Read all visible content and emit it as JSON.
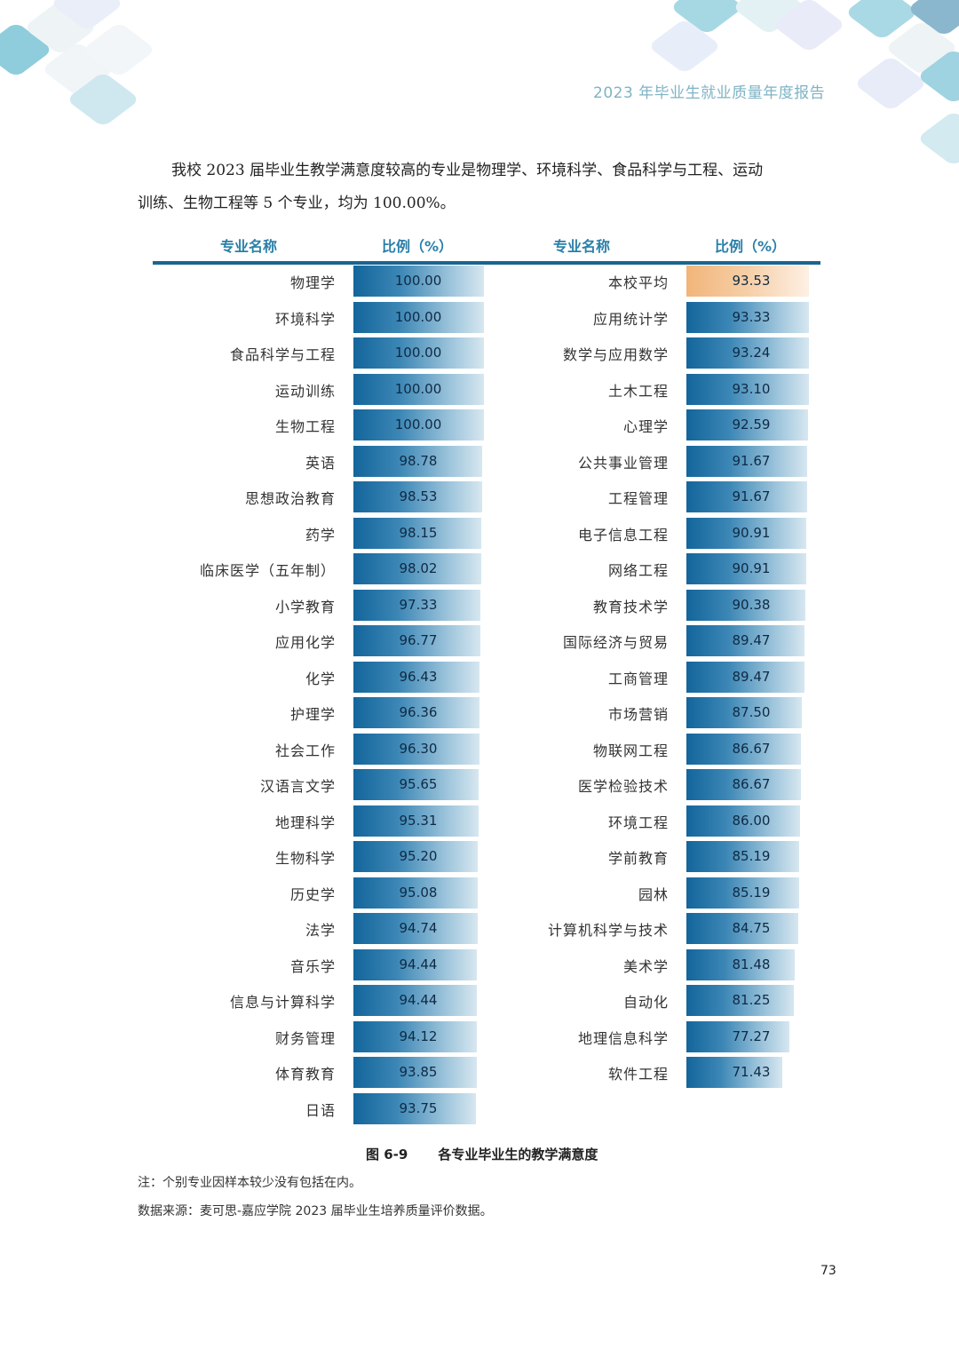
{
  "running_head": "2023 年毕业生就业质量年度报告",
  "paragraph": {
    "line1": "我校 2023 届毕业生教学满意度较高的专业是物理学、环境科学、食品科学与工程、运动",
    "line2": "训练、生物工程等 5 个专业，均为 100.00%。"
  },
  "table_headers": {
    "left_name": "专业名称",
    "left_pct": "比例（%）",
    "right_name": "专业名称",
    "right_pct": "比例（%）"
  },
  "chart_data": {
    "type": "bar",
    "orientation": "horizontal",
    "title": "图 6-9 各专业毕业生的教学满意度",
    "xlabel": "比例（%）",
    "ylabel": "专业名称",
    "highlight": {
      "category": "本校平均",
      "color": "#f1b57a"
    },
    "bar_color": "#13659b",
    "categories": [
      "物理学",
      "环境科学",
      "食品科学与工程",
      "运动训练",
      "生物工程",
      "英语",
      "思想政治教育",
      "药学",
      "临床医学（五年制）",
      "小学教育",
      "应用化学",
      "化学",
      "护理学",
      "社会工作",
      "汉语言文学",
      "地理科学",
      "生物科学",
      "历史学",
      "法学",
      "音乐学",
      "信息与计算科学",
      "财务管理",
      "体育教育",
      "日语",
      "本校平均",
      "应用统计学",
      "数学与应用数学",
      "土木工程",
      "心理学",
      "公共事业管理",
      "工程管理",
      "电子信息工程",
      "网络工程",
      "教育技术学",
      "国际经济与贸易",
      "工商管理",
      "市场营销",
      "物联网工程",
      "医学检验技术",
      "环境工程",
      "学前教育",
      "园林",
      "计算机科学与技术",
      "美术学",
      "自动化",
      "地理信息科学",
      "软件工程"
    ],
    "values": [
      100.0,
      100.0,
      100.0,
      100.0,
      100.0,
      98.78,
      98.53,
      98.15,
      98.02,
      97.33,
      96.77,
      96.43,
      96.36,
      96.3,
      95.65,
      95.31,
      95.2,
      95.08,
      94.74,
      94.44,
      94.44,
      94.12,
      93.85,
      93.75,
      93.53,
      93.33,
      93.24,
      93.1,
      92.59,
      91.67,
      91.67,
      90.91,
      90.91,
      90.38,
      89.47,
      89.47,
      87.5,
      86.67,
      86.67,
      86.0,
      85.19,
      85.19,
      84.75,
      81.48,
      81.25,
      77.27,
      71.43
    ]
  },
  "left_rows": [
    {
      "name": "物理学",
      "value": "100.00"
    },
    {
      "name": "环境科学",
      "value": "100.00"
    },
    {
      "name": "食品科学与工程",
      "value": "100.00"
    },
    {
      "name": "运动训练",
      "value": "100.00"
    },
    {
      "name": "生物工程",
      "value": "100.00"
    },
    {
      "name": "英语",
      "value": "98.78"
    },
    {
      "name": "思想政治教育",
      "value": "98.53"
    },
    {
      "name": "药学",
      "value": "98.15"
    },
    {
      "name": "临床医学（五年制）",
      "value": "98.02"
    },
    {
      "name": "小学教育",
      "value": "97.33"
    },
    {
      "name": "应用化学",
      "value": "96.77"
    },
    {
      "name": "化学",
      "value": "96.43"
    },
    {
      "name": "护理学",
      "value": "96.36"
    },
    {
      "name": "社会工作",
      "value": "96.30"
    },
    {
      "name": "汉语言文学",
      "value": "95.65"
    },
    {
      "name": "地理科学",
      "value": "95.31"
    },
    {
      "name": "生物科学",
      "value": "95.20"
    },
    {
      "name": "历史学",
      "value": "95.08"
    },
    {
      "name": "法学",
      "value": "94.74"
    },
    {
      "name": "音乐学",
      "value": "94.44"
    },
    {
      "name": "信息与计算科学",
      "value": "94.44"
    },
    {
      "name": "财务管理",
      "value": "94.12"
    },
    {
      "name": "体育教育",
      "value": "93.85"
    },
    {
      "name": "日语",
      "value": "93.75"
    }
  ],
  "right_rows": [
    {
      "name": "本校平均",
      "value": "93.53",
      "avg": true
    },
    {
      "name": "应用统计学",
      "value": "93.33"
    },
    {
      "name": "数学与应用数学",
      "value": "93.24"
    },
    {
      "name": "土木工程",
      "value": "93.10"
    },
    {
      "name": "心理学",
      "value": "92.59"
    },
    {
      "name": "公共事业管理",
      "value": "91.67"
    },
    {
      "name": "工程管理",
      "value": "91.67"
    },
    {
      "name": "电子信息工程",
      "value": "90.91"
    },
    {
      "name": "网络工程",
      "value": "90.91"
    },
    {
      "name": "教育技术学",
      "value": "90.38"
    },
    {
      "name": "国际经济与贸易",
      "value": "89.47"
    },
    {
      "name": "工商管理",
      "value": "89.47"
    },
    {
      "name": "市场营销",
      "value": "87.50"
    },
    {
      "name": "物联网工程",
      "value": "86.67"
    },
    {
      "name": "医学检验技术",
      "value": "86.67"
    },
    {
      "name": "环境工程",
      "value": "86.00"
    },
    {
      "name": "学前教育",
      "value": "85.19"
    },
    {
      "name": "园林",
      "value": "85.19"
    },
    {
      "name": "计算机科学与技术",
      "value": "84.75"
    },
    {
      "name": "美术学",
      "value": "81.48"
    },
    {
      "name": "自动化",
      "value": "81.25"
    },
    {
      "name": "地理信息科学",
      "value": "77.27"
    },
    {
      "name": "软件工程",
      "value": "71.43"
    }
  ],
  "caption": {
    "number": "图 6-9",
    "text": "各专业毕业生的教学满意度"
  },
  "note": "注：个别专业因样本较少没有包括在内。",
  "source": "数据来源：麦可思-嘉应学院 2023 届毕业生培养质量评价数据。",
  "page_number": "73"
}
